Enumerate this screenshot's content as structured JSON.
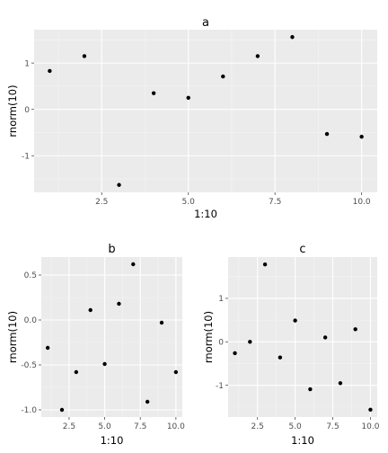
{
  "chart_data": [
    {
      "type": "scatter",
      "title": "a",
      "xlabel": "1:10",
      "ylabel": "rnorm(10)",
      "x": [
        1,
        2,
        3,
        4,
        5,
        6,
        7,
        8,
        9,
        10
      ],
      "y": [
        0.83,
        1.15,
        -1.63,
        0.35,
        0.25,
        0.71,
        1.15,
        1.56,
        -0.53,
        -0.59
      ],
      "xlim": [
        0.55,
        10.45
      ],
      "ylim": [
        -1.79,
        1.72
      ],
      "xticks": [
        2.5,
        5.0,
        7.5,
        10.0
      ],
      "xtick_labels": [
        "2.5",
        "5.0",
        "7.5",
        "10.0"
      ],
      "yticks": [
        -1,
        0,
        1
      ],
      "ytick_labels": [
        "-1",
        "0",
        "1"
      ],
      "grid": true,
      "legend": "none",
      "point_color": "#000000",
      "panel_color": "#ebebeb"
    },
    {
      "type": "scatter",
      "title": "b",
      "xlabel": "1:10",
      "ylabel": "rnorm(10)",
      "x": [
        1,
        2,
        3,
        4,
        5,
        6,
        7,
        8,
        9,
        10
      ],
      "y": [
        -0.31,
        -1.0,
        -0.58,
        0.11,
        -0.49,
        0.18,
        0.62,
        -0.91,
        -0.03,
        -0.58
      ],
      "xlim": [
        0.55,
        10.45
      ],
      "ylim": [
        -1.08,
        0.7
      ],
      "xticks": [
        2.5,
        5.0,
        7.5,
        10.0
      ],
      "xtick_labels": [
        "2.5",
        "5.0",
        "7.5",
        "10.0"
      ],
      "yticks": [
        -1.0,
        -0.5,
        0.0,
        0.5
      ],
      "ytick_labels": [
        "-1.0",
        "-0.5",
        "0.0",
        "0.5"
      ],
      "grid": true,
      "legend": "none",
      "point_color": "#000000",
      "panel_color": "#ebebeb"
    },
    {
      "type": "scatter",
      "title": "c",
      "xlabel": "1:10",
      "ylabel": "rnorm(10)",
      "x": [
        1,
        2,
        3,
        4,
        5,
        6,
        7,
        8,
        9,
        10
      ],
      "y": [
        -0.26,
        0.0,
        1.78,
        -0.36,
        0.49,
        -1.09,
        0.1,
        -0.95,
        0.29,
        -1.56
      ],
      "xlim": [
        0.55,
        10.45
      ],
      "ylim": [
        -1.73,
        1.95
      ],
      "xticks": [
        2.5,
        5.0,
        7.5,
        10.0
      ],
      "xtick_labels": [
        "2.5",
        "5.0",
        "7.5",
        "10.0"
      ],
      "yticks": [
        -1,
        0,
        1
      ],
      "ytick_labels": [
        "-1",
        "0",
        "1"
      ],
      "grid": true,
      "legend": "none",
      "point_color": "#000000",
      "panel_color": "#ebebeb"
    }
  ]
}
